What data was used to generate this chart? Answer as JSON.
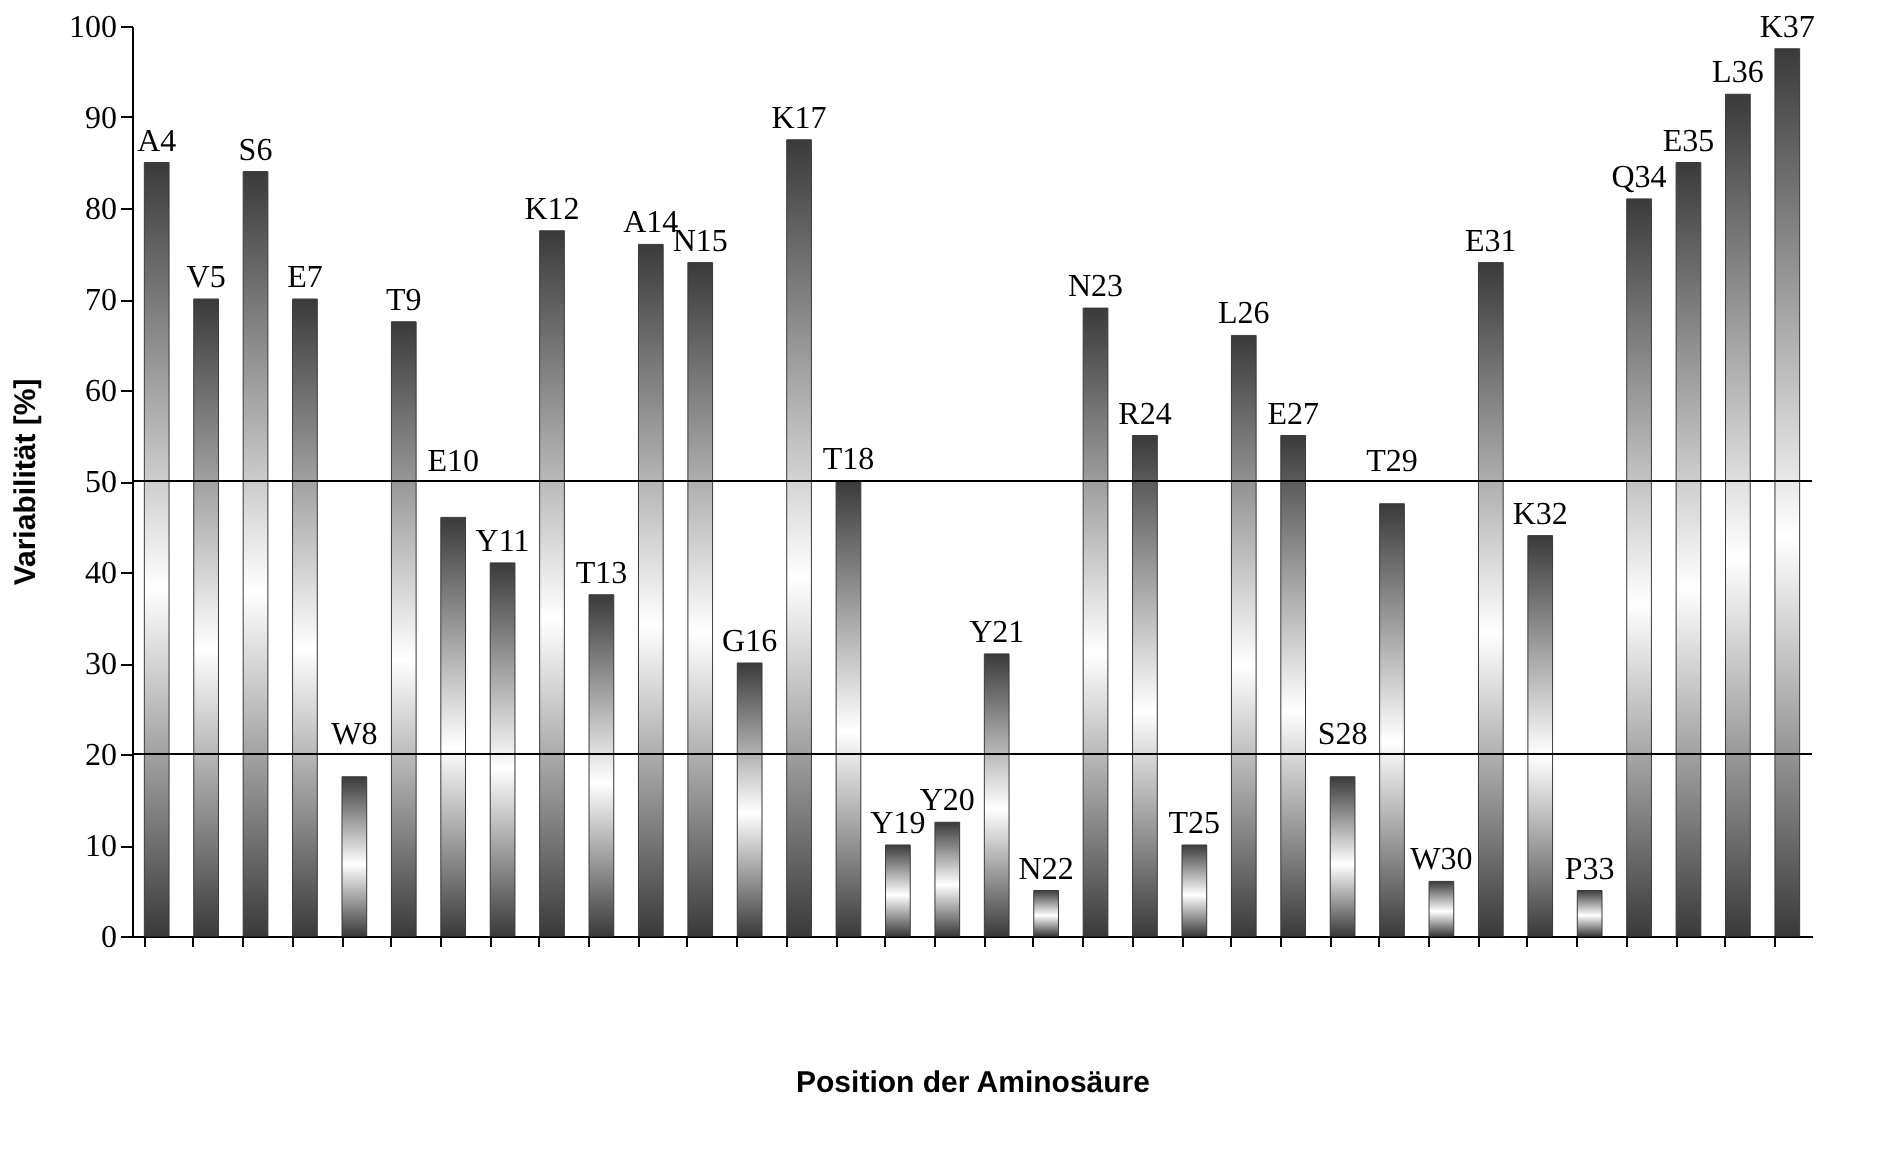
{
  "chart_data": {
    "type": "bar",
    "xlabel": "Position der Aminosäure",
    "ylabel": "Variabilität [%]",
    "categories": [
      "A4",
      "V5",
      "S6",
      "E7",
      "W8",
      "T9",
      "E10",
      "Y11",
      "K12",
      "T13",
      "A14",
      "N15",
      "G16",
      "K17",
      "T18",
      "Y19",
      "Y20",
      "Y21",
      "N22",
      "N23",
      "R24",
      "T25",
      "L26",
      "E27",
      "S28",
      "T29",
      "W30",
      "E31",
      "K32",
      "P33",
      "Q34",
      "E35",
      "L36",
      "K37"
    ],
    "values": [
      85,
      70,
      84,
      70,
      17.5,
      67.5,
      46,
      41,
      77.5,
      37.5,
      76,
      74,
      30,
      87.5,
      50,
      10,
      12.5,
      31,
      5,
      69,
      55,
      10,
      66,
      55,
      17.5,
      47.5,
      6,
      74,
      44,
      5,
      81,
      85,
      92.5,
      97.5
    ],
    "color": "#3a3a3a",
    "ylim": [
      0,
      100
    ],
    "yticks": [
      0,
      10,
      20,
      30,
      40,
      50,
      60,
      70,
      80,
      90,
      100
    ],
    "ref_lines": [
      {
        "axis": "y",
        "value": 20,
        "label": null
      },
      {
        "axis": "y",
        "value": 50,
        "label": null
      }
    ],
    "tick_labels": "y",
    "grid": false
  }
}
